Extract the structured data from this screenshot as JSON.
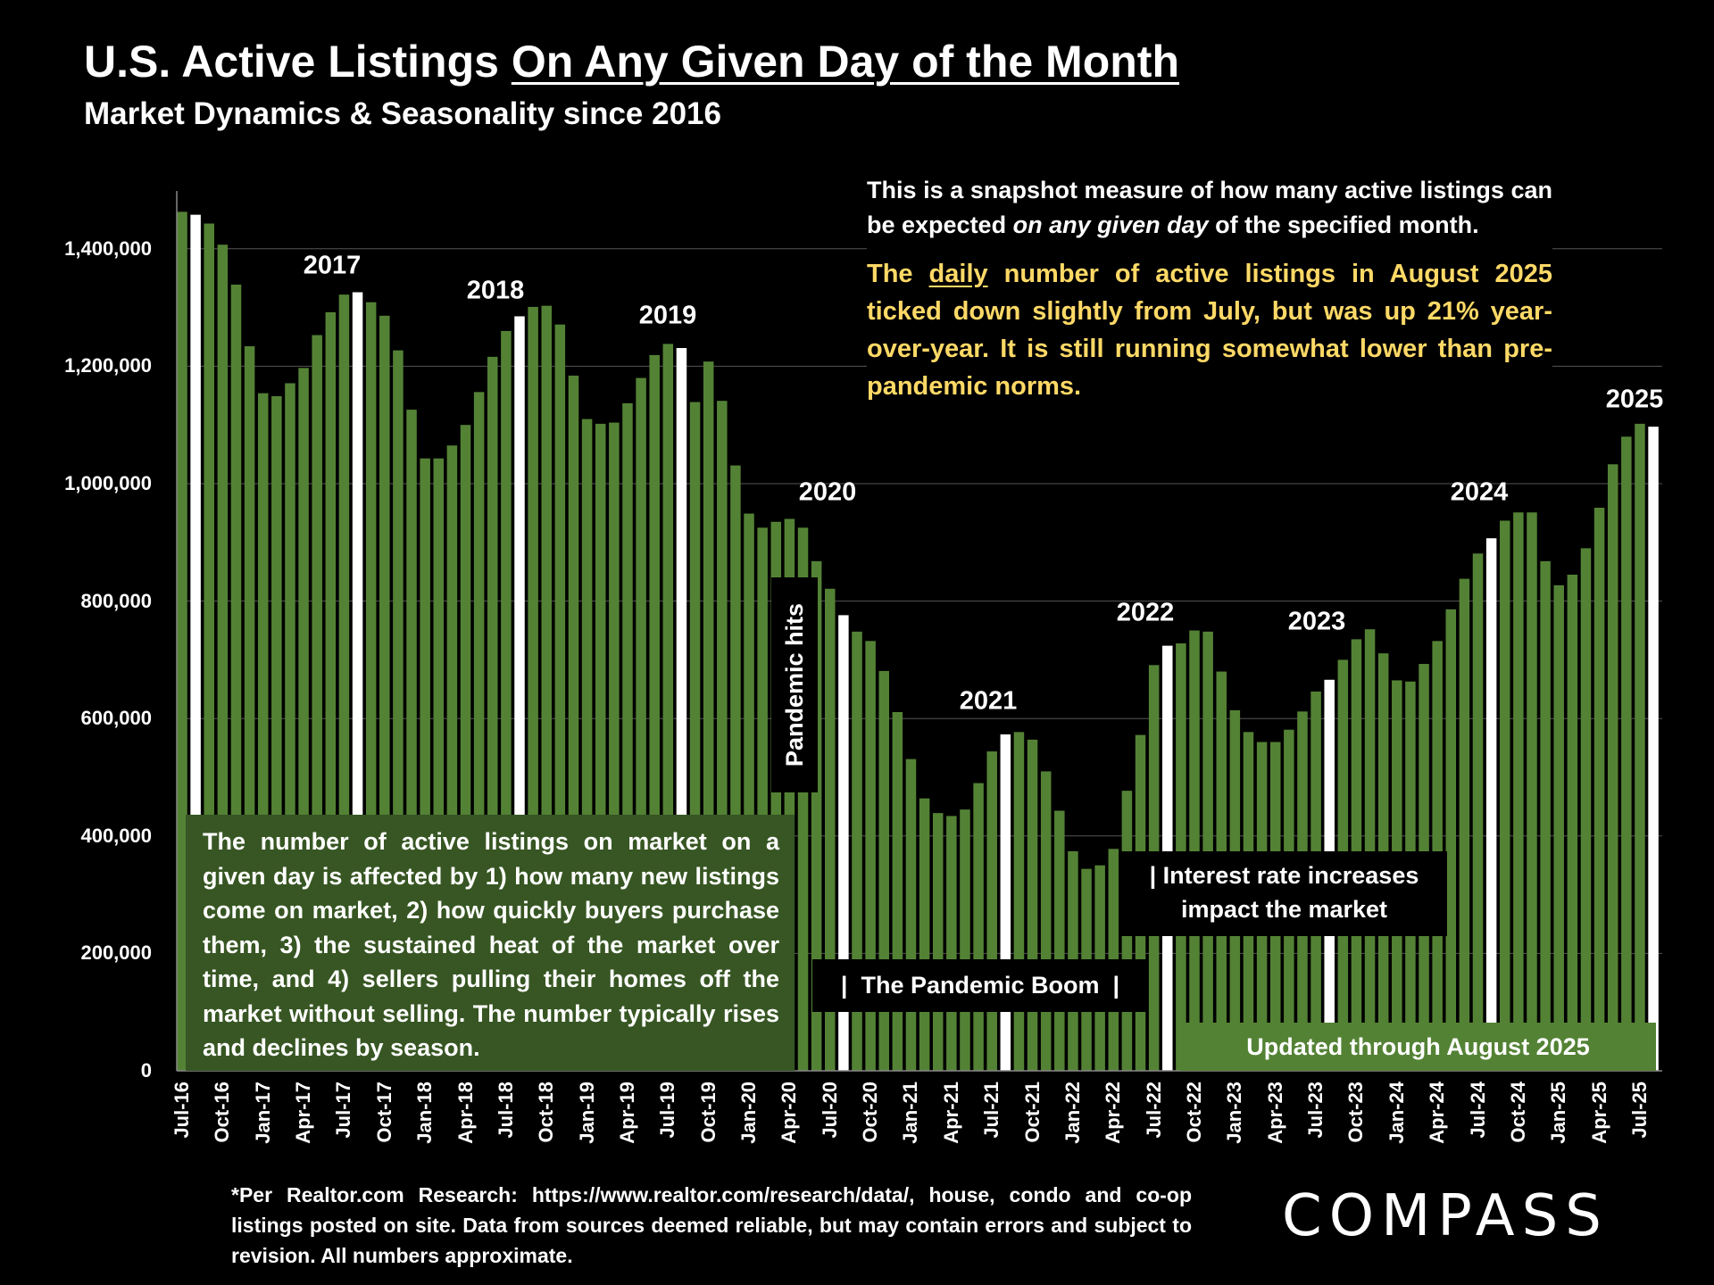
{
  "header": {
    "title_plain": "U.S. Active Listings ",
    "title_underlined": "On Any Given Day of the Month",
    "subtitle": "Market Dynamics & Seasonality since 2016"
  },
  "notes": {
    "snapshot": "This is a snapshot measure of how many active listings can be expected ",
    "snapshot_italic": "on any given day",
    "snapshot_end": " of the specified month.",
    "highlight_pre": "The ",
    "highlight_underlined": "daily",
    "highlight_post": " number of active listings in August 2025 ticked down slightly from July, but was up 21% year-over-year. It is still running somewhat lower than pre-pandemic norms.",
    "factors": "The number of active listings on market on a given day is affected by 1) how many new listings come on market, 2) how quickly buyers purchase them, 3) the sustained heat of the market over time, and 4) sellers pulling their homes off the market without selling. The number typically rises and declines by season.",
    "pandemic_hits": "Pandemic hits",
    "pandemic_boom": "|  The Pandemic Boom  |",
    "interest_rates_line1": "| Interest rate increases",
    "interest_rates_line2": "impact the market",
    "updated": "Updated through August 2025"
  },
  "footnote": "*Per Realtor.com Research:  https://www.realtor.com/research/data/, house, condo and co-op listings posted on site. Data from sources deemed reliable, but may contain errors and subject to revision. All numbers approximate.",
  "logo": "COMPASS",
  "colors": {
    "bar": "#548235",
    "highlight_bar": "#FFFFFF",
    "factors_box": "#375623",
    "highlight_text": "#FFD966",
    "background": "#000000"
  },
  "chart_data": {
    "type": "bar",
    "title": "U.S. Active Listings On Any Given Day of the Month",
    "subtitle": "Market Dynamics & Seasonality since 2016",
    "ylim": [
      0,
      1500000
    ],
    "yticks": [
      "0",
      "200,000",
      "400,000",
      "600,000",
      "800,000",
      "1,000,000",
      "1,200,000",
      "1,400,000"
    ],
    "ytick_values": [
      0,
      200000,
      400000,
      600000,
      800000,
      1000000,
      1200000,
      1400000
    ],
    "grid": "horizontal",
    "start_month": "Jul-16",
    "xtick_labels": [
      "Jul-16",
      "Oct-16",
      "Jan-17",
      "Apr-17",
      "Jul-17",
      "Oct-17",
      "Jan-18",
      "Apr-18",
      "Jul-18",
      "Oct-18",
      "Jan-19",
      "Apr-19",
      "Jul-19",
      "Oct-19",
      "Jan-20",
      "Apr-20",
      "Jul-20",
      "Oct-20",
      "Jan-21",
      "Apr-21",
      "Jul-21",
      "Oct-21",
      "Jan-22",
      "Apr-22",
      "Jul-22",
      "Oct-22",
      "Jan-23",
      "Apr-23",
      "Jul-23",
      "Oct-23",
      "Jan-24",
      "Apr-24",
      "Jul-24",
      "Oct-24",
      "Jan-25",
      "Apr-25",
      "Jul-25"
    ],
    "values": [
      1463000,
      1458000,
      1443000,
      1407000,
      1339000,
      1234000,
      1154000,
      1149000,
      1171000,
      1197000,
      1253000,
      1292000,
      1322000,
      1326000,
      1309000,
      1286000,
      1227000,
      1126000,
      1043000,
      1043000,
      1065000,
      1100000,
      1156000,
      1216000,
      1260000,
      1285000,
      1301000,
      1303000,
      1271000,
      1184000,
      1110000,
      1102000,
      1104000,
      1137000,
      1180000,
      1219000,
      1238000,
      1231000,
      1139000,
      1208000,
      1141000,
      1031000,
      949000,
      925000,
      935000,
      940000,
      925000,
      868000,
      821000,
      776000,
      748000,
      732000,
      681000,
      611000,
      531000,
      464000,
      439000,
      434000,
      445000,
      490000,
      544000,
      573000,
      577000,
      564000,
      510000,
      443000,
      374000,
      344000,
      350000,
      378000,
      477000,
      572000,
      691000,
      724000,
      728000,
      750000,
      748000,
      680000,
      614000,
      577000,
      560000,
      560000,
      581000,
      612000,
      646000,
      666000,
      700000,
      735000,
      752000,
      711000,
      665000,
      663000,
      693000,
      732000,
      786000,
      838000,
      881000,
      907000,
      937000,
      951000,
      951000,
      868000,
      827000,
      845000,
      890000,
      959000,
      1033000,
      1080000,
      1102000,
      1097000
    ],
    "highlighted_months": [
      "Aug-16",
      "Aug-17",
      "Aug-18",
      "Aug-19",
      "Aug-20",
      "Aug-21",
      "Aug-22",
      "Aug-23",
      "Aug-24",
      "Aug-25"
    ],
    "annotations": [
      "2017",
      "2018",
      "2019",
      "2020",
      "2021",
      "2022",
      "2023",
      "2024",
      "2025"
    ]
  }
}
